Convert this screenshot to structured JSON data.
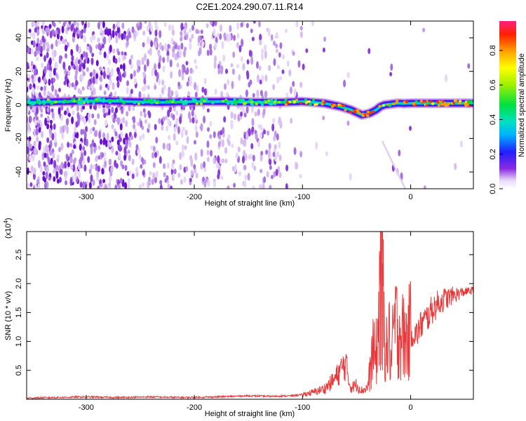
{
  "chart_data": [
    {
      "type": "heatmap",
      "title": "C2E1.2024.290.07.11.R14",
      "xlabel": "Height of straight line (km)",
      "ylabel": "Frequency (Hz)",
      "xlim": [
        -355,
        58
      ],
      "ylim": [
        -50,
        50
      ],
      "x_ticks": [
        -300,
        -200,
        -100,
        0
      ],
      "x_tick_labels": [
        "-300",
        "-200",
        "-100",
        "0"
      ],
      "y_ticks": [
        -40,
        -20,
        0,
        20,
        40
      ],
      "y_tick_labels": [
        "-40",
        "-20",
        "0",
        "20",
        "40"
      ],
      "colorbar": {
        "label": "Normalized spectral amplitude",
        "range": [
          0.0,
          0.97
        ],
        "ticks": [
          0.0,
          0.2,
          0.4,
          0.6,
          0.8
        ],
        "tick_labels": [
          "0.0",
          "0.2",
          "0.4",
          "0.6",
          "0.8"
        ]
      },
      "ridge": {
        "x": [
          -350,
          -320,
          -290,
          -260,
          -230,
          -200,
          -170,
          -140,
          -120,
          -100,
          -80,
          -65,
          -55,
          -45,
          -38,
          -32,
          -28,
          -24,
          -18,
          -12,
          -6,
          0,
          10,
          25,
          40,
          58
        ],
        "freq": [
          1.5,
          2,
          2.5,
          2,
          1.5,
          2,
          2,
          1.5,
          1.5,
          2,
          1,
          -1,
          -3,
          -6,
          -5,
          -3,
          -1,
          0,
          0.5,
          1,
          0.8,
          1,
          1,
          1,
          1,
          1
        ]
      }
    },
    {
      "type": "line",
      "xlabel": "Height of straight line (km)",
      "ylabel": "SNR (10 * v/v)",
      "y_multiplier_label": "(x10",
      "y_multiplier_exp": "4",
      "y_multiplier_close": ")",
      "xlim": [
        -355,
        58
      ],
      "ylim": [
        0,
        2.9
      ],
      "x_ticks": [
        -300,
        -200,
        -100,
        0
      ],
      "x_tick_labels": [
        "-300",
        "-200",
        "-100",
        "0"
      ],
      "y_ticks": [
        0.5,
        1.0,
        1.5,
        2.0,
        2.5
      ],
      "y_tick_labels": [
        "0.5",
        "1.0",
        "1.5",
        "2.0",
        "2.5"
      ],
      "series": [
        {
          "color": "#e8383a",
          "x": [
            -355,
            -330,
            -300,
            -270,
            -240,
            -210,
            -180,
            -150,
            -130,
            -110,
            -100,
            -90,
            -80,
            -75,
            -70,
            -65,
            -60,
            -57,
            -55,
            -50,
            -45,
            -40,
            -37,
            -35,
            -33,
            -30,
            -28,
            -27,
            -26,
            -25,
            -24,
            -22,
            -20,
            -18,
            -15,
            -10,
            -5,
            0,
            5,
            10,
            15,
            20,
            25,
            30,
            40,
            50,
            58
          ],
          "y": [
            0.02,
            0.03,
            0.04,
            0.03,
            0.04,
            0.03,
            0.04,
            0.06,
            0.05,
            0.06,
            0.08,
            0.12,
            0.18,
            0.26,
            0.35,
            0.5,
            0.62,
            0.3,
            0.2,
            0.25,
            0.15,
            0.2,
            0.5,
            0.9,
            0.7,
            1.0,
            2.9,
            1.3,
            2.35,
            1.5,
            1.1,
            0.8,
            1.1,
            0.6,
            1.3,
            1.2,
            1.0,
            1.2,
            1.1,
            1.3,
            1.4,
            1.55,
            1.65,
            1.72,
            1.8,
            1.86,
            1.88
          ]
        }
      ]
    }
  ]
}
